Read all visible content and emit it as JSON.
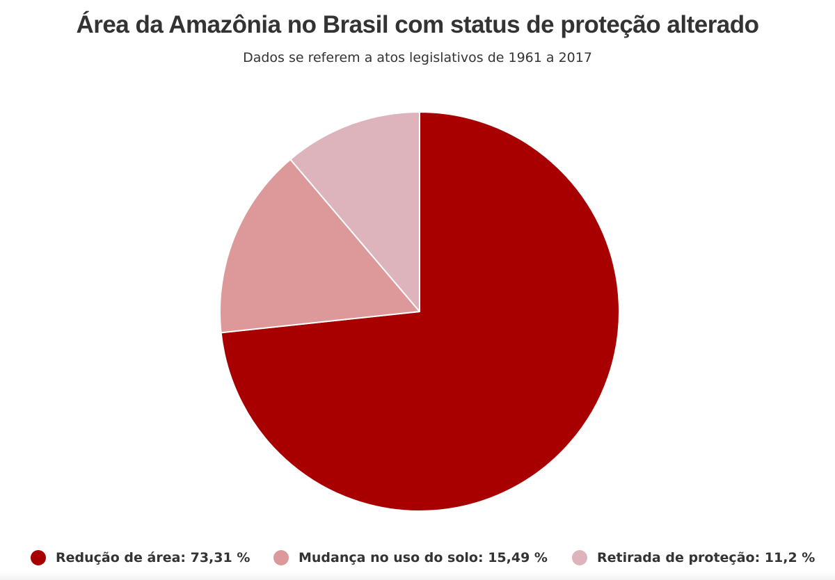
{
  "chart_data": {
    "type": "pie",
    "title": "Área da Amazônia no Brasil com status de proteção alterado",
    "subtitle": "Dados se referem a atos legislativos de 1961 a 2017",
    "legend_position": "bottom",
    "slices": [
      {
        "label": "Redução de área",
        "value": 73.31,
        "display": "Redução de área: 73,31 %",
        "color": "#A80000"
      },
      {
        "label": "Mudança no uso do solo",
        "value": 15.49,
        "display": "Mudança no uso do solo: 15,49 %",
        "color": "#DD9999"
      },
      {
        "label": "Retirada de proteção",
        "value": 11.2,
        "display": "Retirada de proteção: 11,2 %",
        "color": "#DDB4BC"
      }
    ]
  }
}
